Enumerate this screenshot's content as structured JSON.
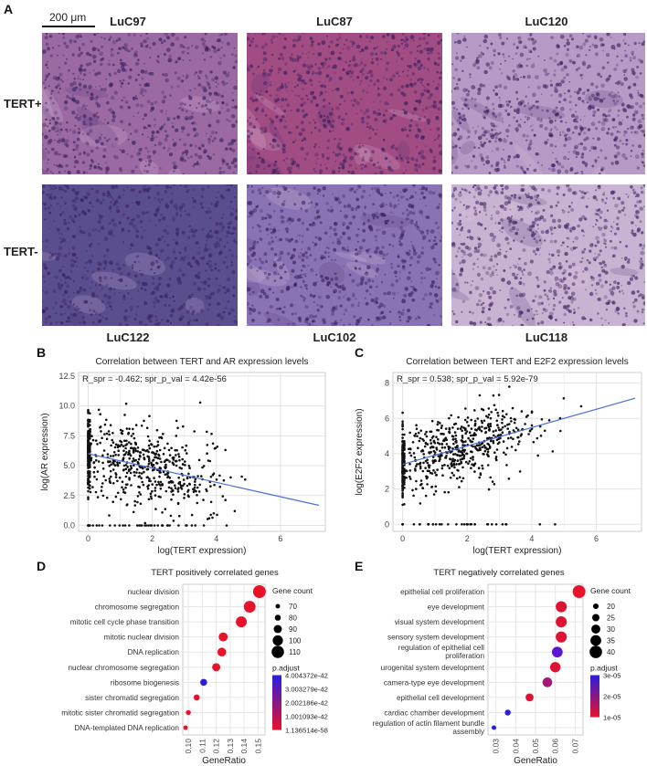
{
  "panel_a": {
    "letter": "A",
    "scale_bar": "200 μm",
    "row_labels": [
      "TERT+",
      "TERT-"
    ],
    "top_samples": [
      "LuC97",
      "LuC87",
      "LuC120"
    ],
    "bottom_samples": [
      "LuC122",
      "LuC102",
      "LuC118"
    ],
    "tile_colors": [
      "#9b6aa3",
      "#a24c84",
      "#b89ac6",
      "#5a4e8f",
      "#8a73b4",
      "#c9b3d2"
    ]
  },
  "panel_b": {
    "letter": "B",
    "title": "Correlation between TERT and AR expression levels",
    "annotation": "R_spr = -0.462; spr_p_val = 4.42e-56",
    "xlabel": "log(TERT expression)",
    "ylabel": "log(AR expression)",
    "xticks": [
      "0",
      "2",
      "4",
      "6"
    ],
    "yticks": [
      "0.0",
      "2.5",
      "5.0",
      "7.5",
      "10.0",
      "12.5"
    ]
  },
  "panel_c": {
    "letter": "C",
    "title": "Correlation between TERT and E2F2 expression levels",
    "annotation": "R_spr = 0.538; spr_p_val = 5.92e-79",
    "xlabel": "log(TERT expression)",
    "ylabel": "log(E2F2 expression)",
    "xticks": [
      "0",
      "2",
      "4",
      "6"
    ],
    "yticks": [
      "0",
      "2",
      "4",
      "6",
      "8"
    ]
  },
  "panel_d": {
    "letter": "D",
    "title": "TERT positively correlated genes",
    "xlabel": "GeneRatio",
    "size_legend_title": "Gene count",
    "size_legend": [
      "70",
      "80",
      "90",
      "100",
      "110"
    ],
    "color_legend_title": "p.adjust",
    "color_legend": [
      "4.004372e-42",
      "3.003279e-42",
      "2.002186e-42",
      "1.001093e-42",
      "1.136514e-58"
    ]
  },
  "panel_e": {
    "letter": "E",
    "title": "TERT negatively correlated genes",
    "xlabel": "GeneRatio",
    "size_legend_title": "Gene count",
    "size_legend": [
      "20",
      "25",
      "30",
      "35",
      "40"
    ],
    "color_legend_title": "p.adjust",
    "color_legend": [
      "3e-05",
      "2e-05",
      "1e-05"
    ]
  },
  "chart_data": [
    {
      "type": "scatter",
      "title": "Correlation between TERT and AR expression levels",
      "xlabel": "log(TERT expression)",
      "ylabel": "log(AR expression)",
      "xlim": [
        -0.3,
        7.4
      ],
      "ylim": [
        -0.5,
        12.8
      ],
      "seed": 7,
      "n_points": 700,
      "trend": {
        "slope": -0.6,
        "intercept": 6.0,
        "noise": 1.7,
        "color": "#4a6fd6"
      },
      "annotation": "R_spr = -0.462; spr_p_val = 4.42e-56"
    },
    {
      "type": "scatter",
      "title": "Correlation between TERT and E2F2 expression levels",
      "xlabel": "log(TERT expression)",
      "ylabel": "log(E2F2 expression)",
      "xlim": [
        -0.3,
        7.4
      ],
      "ylim": [
        -0.4,
        8.6
      ],
      "seed": 13,
      "n_points": 700,
      "trend": {
        "slope": 0.52,
        "intercept": 3.4,
        "noise": 1.0,
        "color": "#4a6fd6"
      },
      "annotation": "R_spr = 0.538; spr_p_val = 5.92e-79"
    },
    {
      "type": "scatter",
      "title": "TERT positively correlated genes",
      "xlabel": "GeneRatio",
      "xticks": [
        0.1,
        0.11,
        0.12,
        0.13,
        0.14,
        0.15
      ],
      "xlim": [
        0.096,
        0.155
      ],
      "categories": [
        "nuclear division",
        "chromosome segregation",
        "mitotic cell cycle phase transition",
        "mitotic nuclear division",
        "DNA replication",
        "nuclear chromosome segregation",
        "ribosome biogenesis",
        "sister chromatid segregation",
        "mitotic sister chromatid segregation",
        "DNA-templated DNA replication"
      ],
      "gene_ratio": [
        0.151,
        0.144,
        0.138,
        0.125,
        0.124,
        0.12,
        0.111,
        0.106,
        0.1,
        0.098
      ],
      "gene_count": [
        112,
        107,
        103,
        94,
        93,
        90,
        84,
        80,
        75,
        73
      ],
      "color": [
        "#e8122a",
        "#e8122a",
        "#e8122a",
        "#e8122a",
        "#e8122a",
        "#e8122a",
        "#2a1ee0",
        "#e8122a",
        "#e8122a",
        "#e8122a"
      ]
    },
    {
      "type": "scatter",
      "title": "TERT negatively correlated genes",
      "xlabel": "GeneRatio",
      "xticks": [
        0.03,
        0.04,
        0.05,
        0.06,
        0.07
      ],
      "xlim": [
        0.026,
        0.074
      ],
      "categories": [
        "epithelial cell proliferation",
        "eye development",
        "visual system development",
        "sensory system development",
        "regulation of epithelial cell proliferation",
        "urogenital system development",
        "camera-type eye development",
        "epithelial cell development",
        "cardiac chamber development",
        "regulation of actin filament bundle assembly"
      ],
      "gene_ratio": [
        0.072,
        0.063,
        0.063,
        0.063,
        0.061,
        0.06,
        0.056,
        0.047,
        0.036,
        0.029
      ],
      "gene_count": [
        41,
        36,
        36,
        36,
        35,
        34,
        32,
        27,
        21,
        17
      ],
      "color": [
        "#e8122a",
        "#e01234",
        "#e01234",
        "#e01234",
        "#5a16d0",
        "#e01234",
        "#a41876",
        "#e01234",
        "#2a1ee0",
        "#2a1ee0"
      ]
    }
  ]
}
